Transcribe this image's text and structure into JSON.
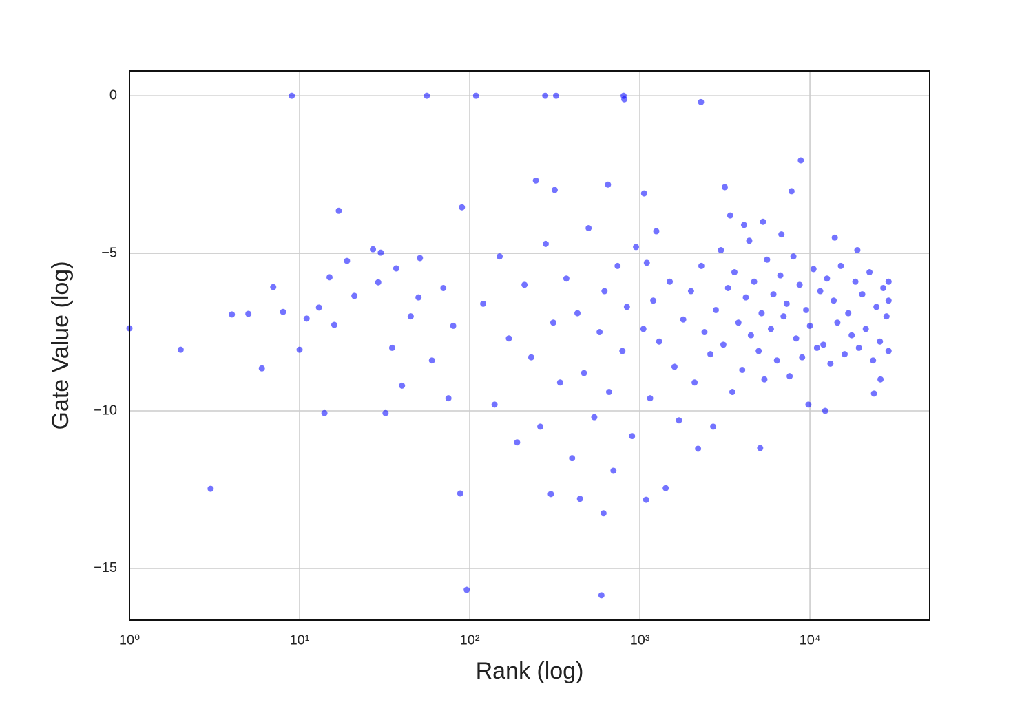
{
  "chart_data": {
    "type": "scatter",
    "x_label": "Rank (log)",
    "y_label": "Gate Value (log)",
    "x_scale": "log",
    "grid": true,
    "color": "#0000ff",
    "xlim": [
      1,
      50600
    ],
    "ylim": [
      -16.64,
      0.79
    ],
    "xticks": [
      {
        "value": 1,
        "label": "10⁰"
      },
      {
        "value": 10,
        "label": "10¹"
      },
      {
        "value": 100,
        "label": "10²"
      },
      {
        "value": 1000,
        "label": "10³"
      },
      {
        "value": 10000,
        "label": "10⁴"
      }
    ],
    "yticks": [
      0,
      {
        "value": -5,
        "label": "−5"
      },
      {
        "value": -10,
        "label": "−10"
      },
      {
        "value": -15,
        "label": "−15"
      }
    ],
    "x": [
      1,
      2,
      3,
      4,
      5,
      6,
      7,
      8,
      9,
      10,
      11,
      13,
      14,
      15,
      16,
      17,
      19,
      21,
      27,
      30,
      29,
      32,
      37,
      56,
      51,
      90,
      88,
      96,
      109,
      278,
      322,
      803,
      811,
      2290,
      8840,
      595,
      612,
      245,
      316,
      650,
      1060,
      3160,
      7800,
      12300,
      1420,
      1090,
      445,
      300,
      5100,
      23800,
      1200,
      1300,
      1500,
      1600,
      1800,
      2000,
      2100,
      2300,
      2400,
      2600,
      2800,
      3000,
      3100,
      3300,
      3500,
      3600,
      3800,
      4000,
      4200,
      4400,
      4500,
      4700,
      5000,
      5200,
      5400,
      5600,
      5900,
      6100,
      6400,
      6700,
      7000,
      7300,
      7600,
      8000,
      8300,
      8700,
      9000,
      9500,
      10000,
      10500,
      11000,
      11500,
      12000,
      12600,
      13200,
      13800,
      14500,
      15200,
      16000,
      16800,
      17600,
      18500,
      19400,
      20300,
      21300,
      22400,
      23500,
      24600,
      25800,
      27000,
      28200,
      29000,
      29000,
      29000,
      1050,
      1100,
      1150,
      1250,
      1700,
      2200,
      2700,
      3400,
      4100,
      5300,
      6800,
      9800,
      14000,
      19000,
      26000,
      120,
      140,
      150,
      170,
      190,
      210,
      230,
      260,
      280,
      310,
      340,
      370,
      400,
      430,
      470,
      500,
      540,
      580,
      620,
      660,
      700,
      740,
      790,
      840,
      900,
      950,
      60,
      70,
      75,
      80,
      45,
      40,
      35,
      50
    ],
    "values": [
      -7.38,
      -8.06,
      -12.47,
      -6.94,
      -6.92,
      -8.65,
      -6.07,
      -6.86,
      0,
      -8.06,
      -7.07,
      -6.72,
      -10.07,
      -5.76,
      -7.27,
      -3.65,
      -5.24,
      -6.35,
      -4.87,
      -4.98,
      -5.92,
      -10.07,
      -5.48,
      0,
      -5.15,
      -3.54,
      -12.62,
      -15.68,
      0,
      0,
      0,
      0,
      -0.11,
      -0.2,
      -2.05,
      -15.85,
      -13.25,
      -2.69,
      -2.99,
      -2.82,
      -3.1,
      -2.9,
      -3.03,
      -10,
      -12.45,
      -12.82,
      -12.79,
      -12.64,
      -11.18,
      -9.45,
      -6.5,
      -7.8,
      -5.9,
      -8.6,
      -7.1,
      -6.2,
      -9.1,
      -5.4,
      -7.5,
      -8.2,
      -6.8,
      -4.9,
      -7.9,
      -6.1,
      -9.4,
      -5.6,
      -7.2,
      -8.7,
      -6.4,
      -4.6,
      -7.6,
      -5.9,
      -8.1,
      -6.9,
      -9.0,
      -5.2,
      -7.4,
      -6.3,
      -8.4,
      -5.7,
      -7.0,
      -6.6,
      -8.9,
      -5.1,
      -7.7,
      -6.0,
      -8.3,
      -6.8,
      -7.3,
      -5.5,
      -8.0,
      -6.2,
      -7.9,
      -5.8,
      -8.5,
      -6.5,
      -7.2,
      -5.4,
      -8.2,
      -6.9,
      -7.6,
      -5.9,
      -8.0,
      -6.3,
      -7.4,
      -5.6,
      -8.4,
      -6.7,
      -7.8,
      -6.1,
      -7.0,
      -8.1,
      -5.9,
      -6.5,
      -7.4,
      -5.3,
      -9.6,
      -4.3,
      -10.3,
      -11.2,
      -10.5,
      -3.8,
      -4.1,
      -4.0,
      -4.4,
      -9.8,
      -4.5,
      -4.9,
      -9.0,
      -6.6,
      -9.8,
      -5.1,
      -7.7,
      -11.0,
      -6.0,
      -8.3,
      -10.5,
      -4.7,
      -7.2,
      -9.1,
      -5.8,
      -11.5,
      -6.9,
      -8.8,
      -4.2,
      -10.2,
      -7.5,
      -6.2,
      -9.4,
      -11.9,
      -5.4,
      -8.1,
      -6.7,
      -10.8,
      -4.8,
      -8.4,
      -6.1,
      -9.6,
      -7.3,
      -7.0,
      -9.2,
      -8.0,
      -6.4
    ]
  }
}
